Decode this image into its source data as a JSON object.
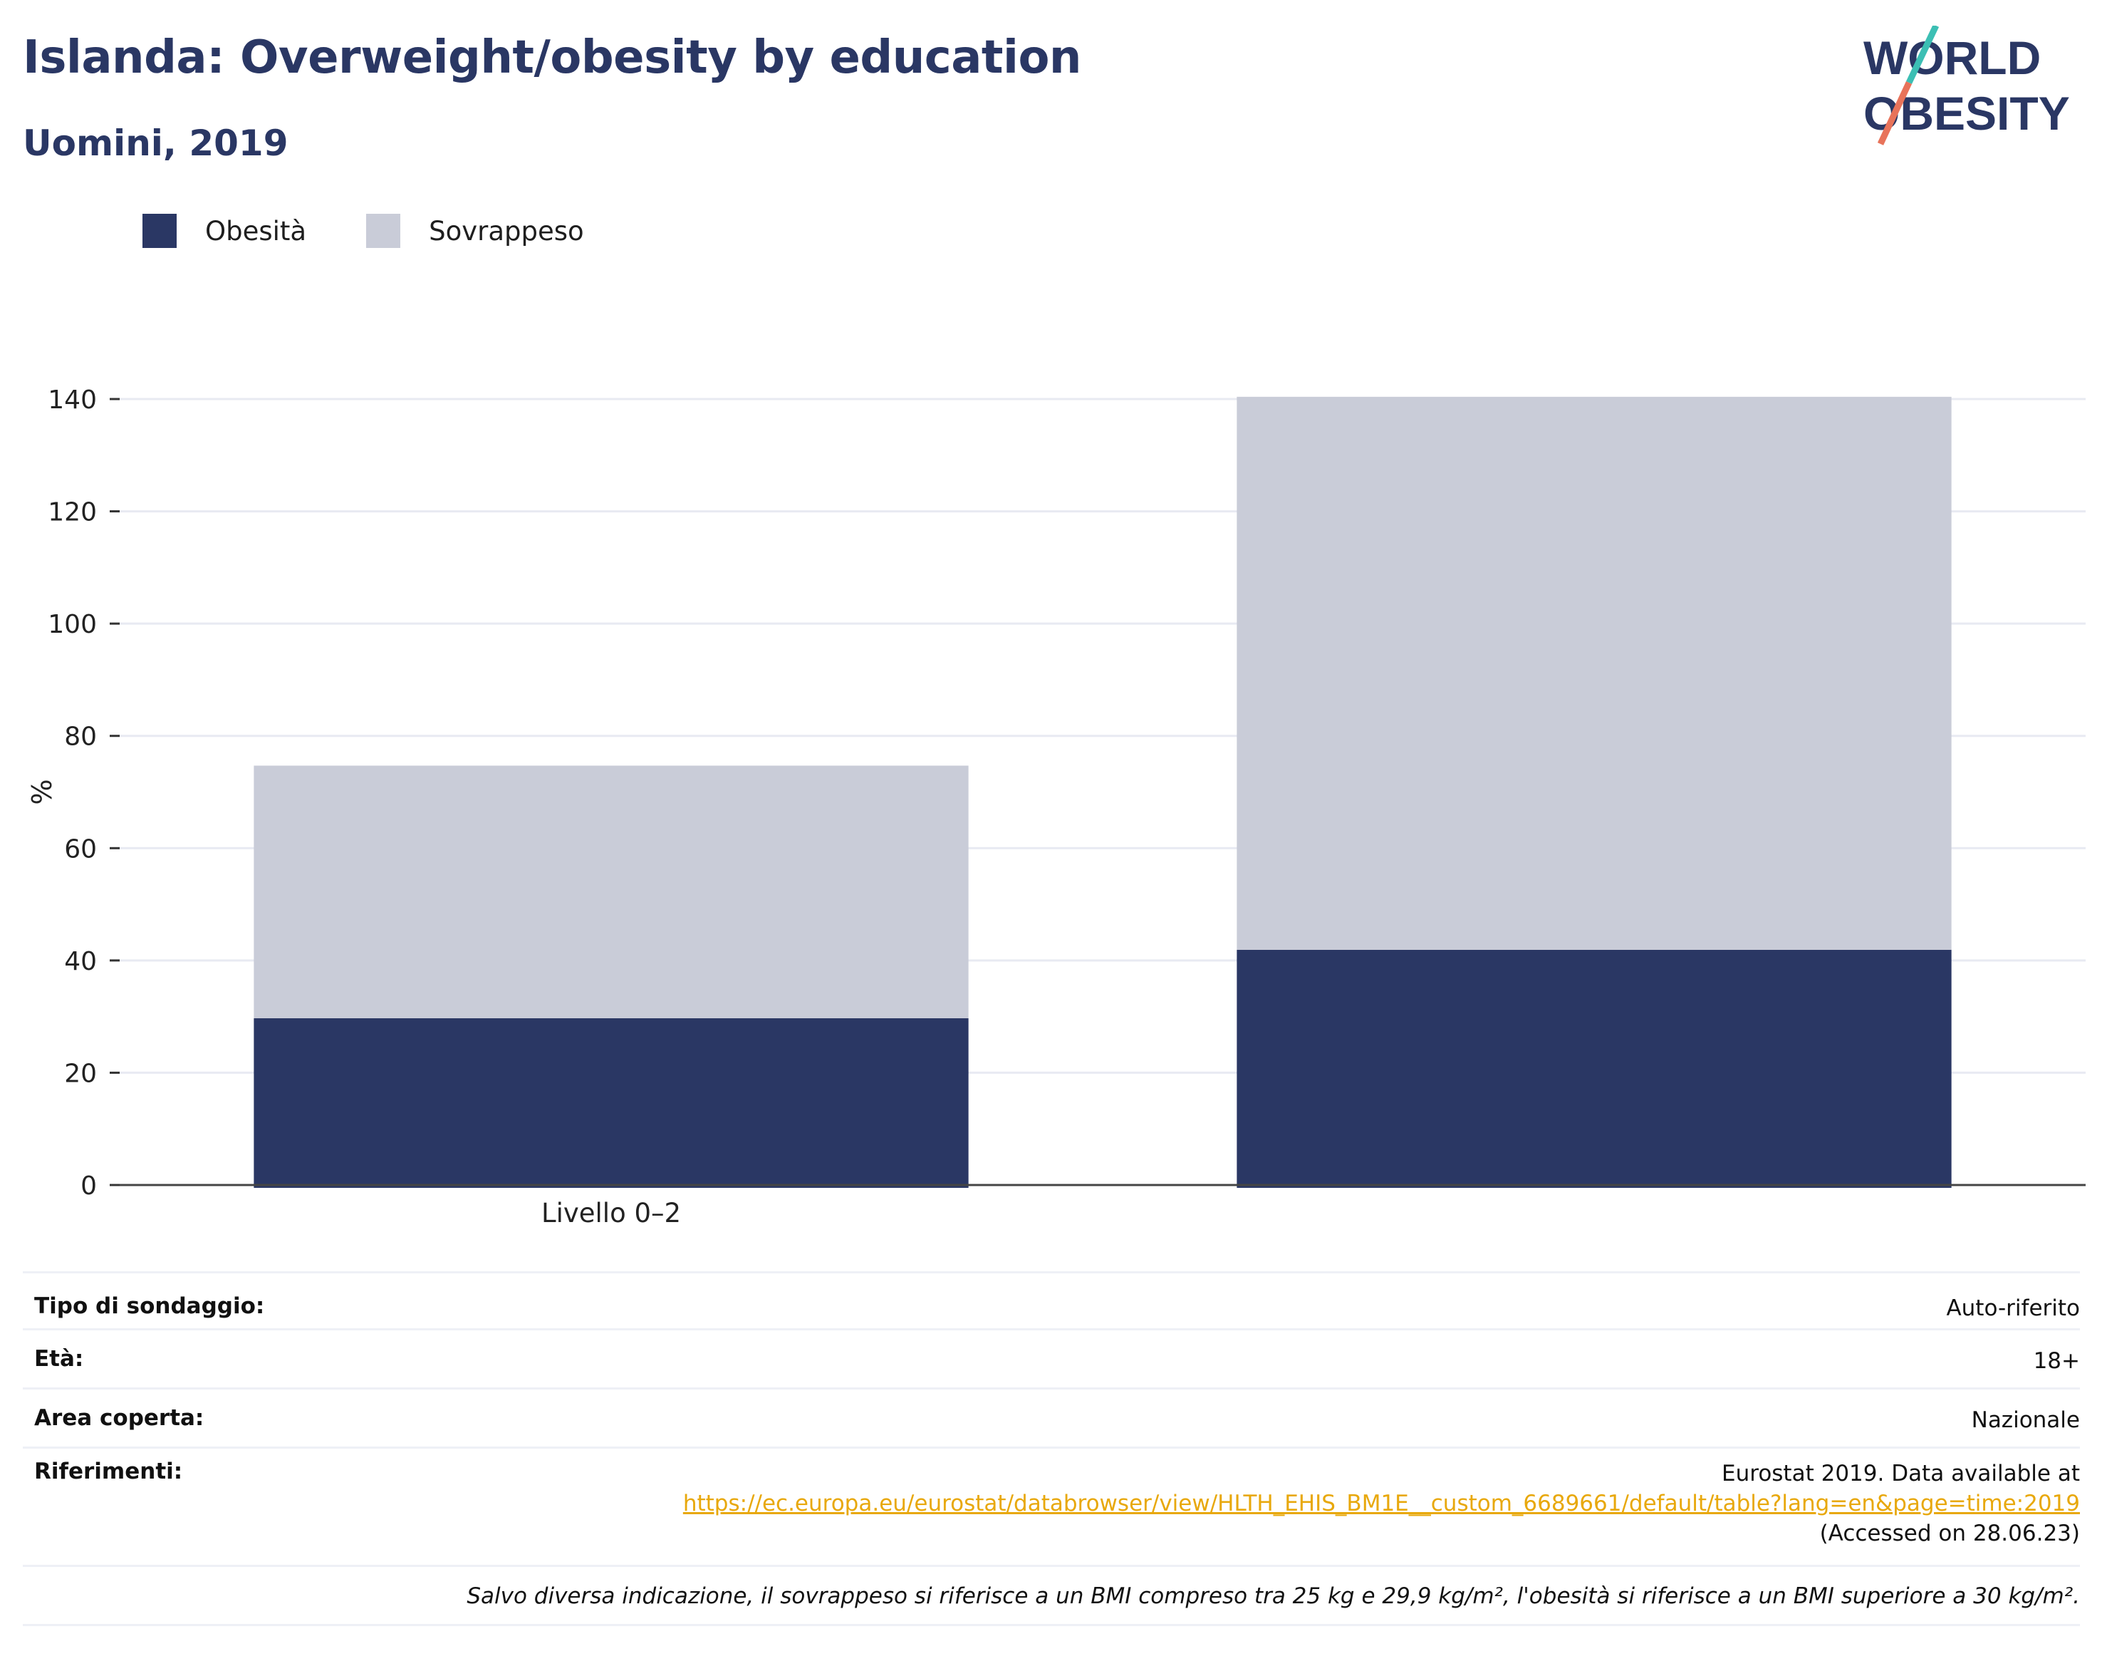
{
  "header": {
    "title": "Islanda: Overweight/obesity by education",
    "subtitle": "Uomini, 2019"
  },
  "logo": {
    "line1": "WORLD",
    "line2": "OBESITY",
    "colors": {
      "text": "#2a3764",
      "slash_top": "#3cbfb4",
      "slash_bottom": "#e8735a"
    }
  },
  "legend": {
    "items": [
      {
        "label": "Obesità",
        "color": "#2a3764"
      },
      {
        "label": "Sovrappeso",
        "color": "#c9ccd8"
      }
    ]
  },
  "chart_data": {
    "type": "bar",
    "stacked": true,
    "categories": [
      "Livello 0–2",
      ""
    ],
    "series": [
      {
        "name": "Obesità",
        "values": [
          29.7,
          41.9
        ],
        "color": "#2a3764"
      },
      {
        "name": "Sovrappeso",
        "values": [
          45,
          98.5
        ],
        "color": "#c9ccd8"
      }
    ],
    "ylabel": "%",
    "ylim": [
      0,
      140
    ],
    "yticks": [
      0,
      20,
      40,
      60,
      80,
      100,
      120,
      140
    ],
    "grid": true,
    "legend_position": "top-left"
  },
  "info": {
    "survey_label": "Tipo di sondaggio:",
    "survey_value": "Auto-riferito",
    "age_label": "Età:",
    "age_value": "18+",
    "area_label": "Area coperta:",
    "area_value": "Nazionale",
    "refs_label": "Riferimenti:",
    "refs_line1": "Eurostat 2019. Data available at",
    "refs_link": "https://ec.europa.eu/eurostat/databrowser/view/HLTH_EHIS_BM1E__custom_6689661/default/table?lang=en&page=time:2019",
    "refs_line3": "(Accessed on 28.06.23)",
    "note": "Salvo diversa indicazione, il sovrappeso si riferisce a un BMI compreso tra 25 kg e 29,9 kg/m², l'obesità si riferisce a un BMI superiore a 30 kg/m²."
  }
}
